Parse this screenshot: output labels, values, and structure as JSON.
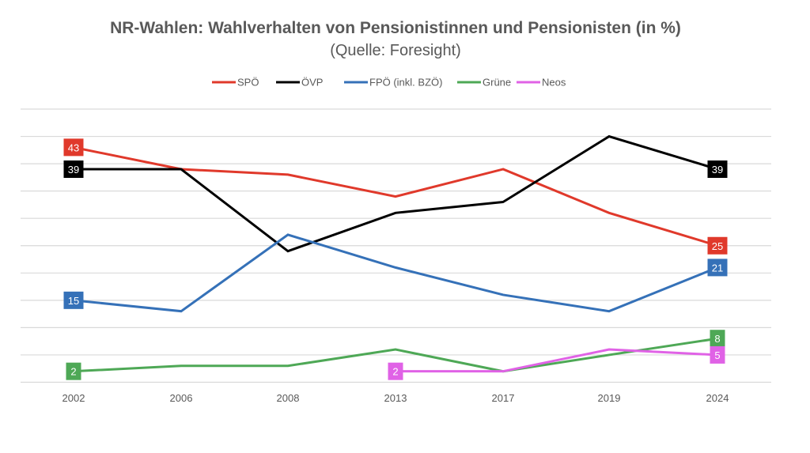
{
  "chart_data": {
    "type": "line",
    "title": "NR-Wahlen: Wahlverhalten von Pensionistinnen und Pensionisten (in %)",
    "subtitle": "(Quelle: Foresight)",
    "xlabel": "",
    "ylabel": "",
    "categories": [
      "2002",
      "2006",
      "2008",
      "2013",
      "2017",
      "2019",
      "2024"
    ],
    "ylim": [
      0,
      50
    ],
    "ygrid_step": 5,
    "grid": true,
    "y_tick_labels_visible": false,
    "legend_position": "top-center",
    "series": [
      {
        "name": "SPÖ",
        "color": "#E0392B",
        "values": [
          43,
          39,
          38,
          34,
          39,
          31,
          25
        ],
        "labels": {
          "first": "43",
          "last": "25"
        }
      },
      {
        "name": "ÖVP",
        "color": "#000000",
        "values": [
          39,
          39,
          24,
          31,
          33,
          45,
          39
        ],
        "labels": {
          "first": "39",
          "last": "39"
        }
      },
      {
        "name": "FPÖ (inkl. BZÖ)",
        "color": "#3571B8",
        "values": [
          15,
          13,
          27,
          21,
          16,
          13,
          21
        ],
        "labels": {
          "first": "15",
          "last": "21"
        }
      },
      {
        "name": "Grüne",
        "color": "#4EA856",
        "values": [
          2,
          3,
          3,
          6,
          2,
          5,
          8
        ],
        "labels": {
          "first": "2",
          "last": "8"
        }
      },
      {
        "name": "Neos",
        "color": "#E062E6",
        "values": [
          null,
          null,
          null,
          2,
          2,
          6,
          5
        ],
        "labels": {
          "first": "2",
          "last": "5"
        }
      }
    ]
  }
}
